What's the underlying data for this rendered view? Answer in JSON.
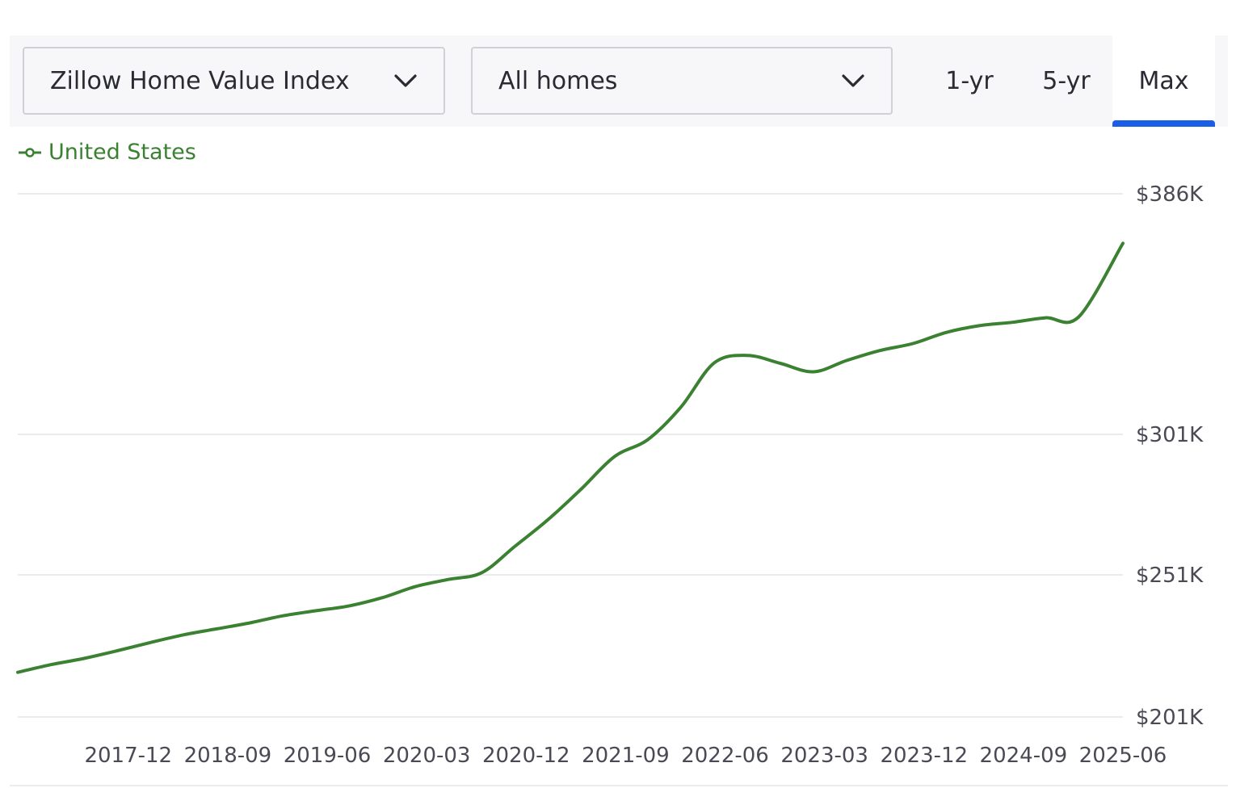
{
  "toolbar": {
    "metric_select": {
      "label": "Zillow Home Value Index",
      "icon": "chevron-down-icon"
    },
    "home_type_select": {
      "label": "All homes",
      "icon": "chevron-down-icon"
    },
    "range_tabs": [
      {
        "label": "1-yr",
        "active": false
      },
      {
        "label": "5-yr",
        "active": false
      },
      {
        "label": "Max",
        "active": true
      }
    ],
    "active_tab_color": "#1a5ee8"
  },
  "legend": {
    "label": "United States",
    "color": "#3b8132",
    "icon": "line-marker-icon"
  },
  "chart_data": {
    "type": "line",
    "title": "",
    "xlabel": "",
    "ylabel": "",
    "x_ticks": [
      "2017-12",
      "2018-09",
      "2019-06",
      "2020-03",
      "2020-12",
      "2021-09",
      "2022-06",
      "2023-03",
      "2023-12",
      "2024-09",
      "2025-06"
    ],
    "y_ticks": [
      {
        "value": 201,
        "label": "$201K"
      },
      {
        "value": 251,
        "label": "$251K"
      },
      {
        "value": 301,
        "label": "$301K"
      },
      {
        "value": 386,
        "label": "$386K"
      }
    ],
    "ylim": [
      201,
      386
    ],
    "grid": true,
    "series": [
      {
        "name": "United States",
        "color": "#3b8132",
        "x": [
          "2017-02",
          "2017-05",
          "2017-08",
          "2017-11",
          "2018-02",
          "2018-05",
          "2018-08",
          "2018-11",
          "2019-02",
          "2019-05",
          "2019-08",
          "2019-11",
          "2020-02",
          "2020-05",
          "2020-08",
          "2020-11",
          "2021-02",
          "2021-05",
          "2021-08",
          "2021-11",
          "2022-02",
          "2022-05",
          "2022-08",
          "2022-11",
          "2023-02",
          "2023-05",
          "2023-08",
          "2023-11",
          "2024-02",
          "2024-05",
          "2024-08",
          "2024-11",
          "2025-02",
          "2025-06"
        ],
        "values": [
          216.7,
          219.4,
          221.6,
          224.3,
          227.2,
          229.9,
          232.0,
          234.1,
          236.6,
          238.4,
          240.1,
          243.0,
          246.9,
          249.4,
          251.8,
          261.2,
          270.7,
          281.6,
          293.1,
          299.1,
          310.6,
          326.2,
          328.9,
          326.1,
          323.1,
          327.1,
          330.6,
          333.1,
          337.0,
          339.4,
          340.6,
          342.2,
          342.5,
          368.5
        ]
      }
    ]
  }
}
